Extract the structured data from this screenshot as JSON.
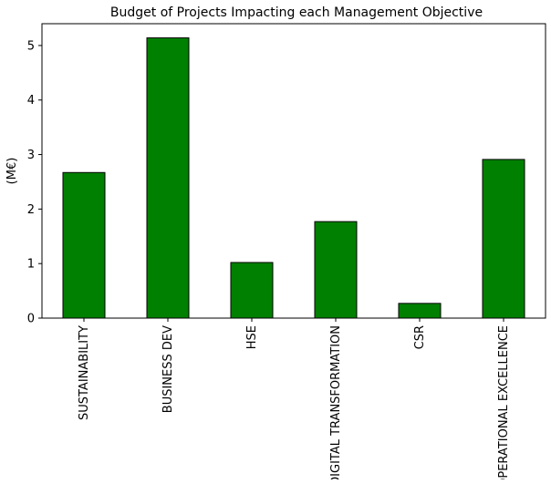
{
  "chart_data": {
    "type": "bar",
    "title": "Budget of Projects Impacting each Management Objective",
    "xlabel": "",
    "ylabel": "(M€)",
    "categories": [
      "SUSTAINABILITY",
      "BUSINESS DEV",
      "HSE",
      "DIGITAL TRANSFORMATION",
      "CSR",
      "OPERATIONAL EXCELLENCE"
    ],
    "values": [
      2.67,
      5.14,
      1.02,
      1.77,
      0.27,
      2.91
    ],
    "ylim": [
      0,
      5.4
    ],
    "yticks": [
      "0",
      "1",
      "2",
      "3",
      "4",
      "5"
    ],
    "grid": false,
    "legend": "none",
    "bar_color": "#008000",
    "bar_edge_color": "#000000"
  }
}
